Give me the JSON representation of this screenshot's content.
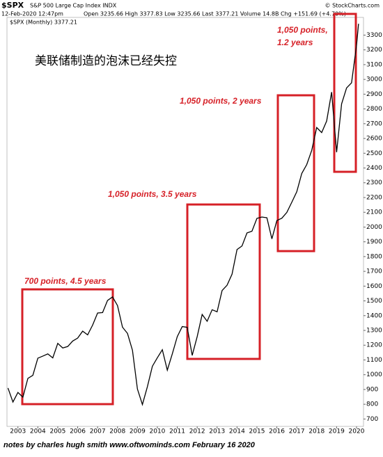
{
  "chart_data": {
    "type": "line",
    "title": "美联储制造的泡沫已经失控",
    "header": {
      "ticker": "$SPX",
      "index_name": "S&P 500 Large Cap Index INDX",
      "source": "© StockCharts.com",
      "timestamp": "12-Feb-2020 12:47pm",
      "quote": "Open 3235.66 High 3377.83 Low 3235.66 Last 3377.21 Volume 14.8B Chg +151.69 (+4.70%)"
    },
    "annotations": [
      "700 points, 4.5 years",
      "1,050 points, 3.5 years",
      "1,050 points, 2 years",
      "1,050 points,",
      "1.2 years"
    ],
    "footer": "notes by charles hugh smith  www.oftwominds.com  February 16 2020",
    "x": [
      2002.5,
      2002.75,
      2003.0,
      2003.25,
      2003.5,
      2003.75,
      2004.0,
      2004.25,
      2004.5,
      2004.75,
      2005.0,
      2005.25,
      2005.5,
      2005.75,
      2006.0,
      2006.25,
      2006.5,
      2006.75,
      2007.0,
      2007.25,
      2007.5,
      2007.75,
      2008.0,
      2008.25,
      2008.5,
      2008.75,
      2009.0,
      2009.25,
      2009.5,
      2009.75,
      2010.0,
      2010.25,
      2010.5,
      2010.75,
      2011.0,
      2011.25,
      2011.5,
      2011.75,
      2012.0,
      2012.25,
      2012.5,
      2012.75,
      2013.0,
      2013.25,
      2013.5,
      2013.75,
      2014.0,
      2014.25,
      2014.5,
      2014.75,
      2015.0,
      2015.25,
      2015.5,
      2015.75,
      2016.0,
      2016.25,
      2016.5,
      2016.75,
      2017.0,
      2017.25,
      2017.5,
      2017.75,
      2018.0,
      2018.25,
      2018.5,
      2018.75,
      2019.0,
      2019.25,
      2019.5,
      2019.75,
      2020.0,
      2020.1
    ],
    "series": [
      {
        "name": "$SPX (Monthly) 3377.21",
        "color": "#000000",
        "values": [
          910,
          815,
          880,
          848,
          975,
          996,
          1112,
          1126,
          1141,
          1114,
          1212,
          1181,
          1191,
          1228,
          1248,
          1295,
          1270,
          1336,
          1418,
          1421,
          1503,
          1527,
          1468,
          1322,
          1280,
          1166,
          903,
          798,
          919,
          1057,
          1115,
          1169,
          1031,
          1141,
          1258,
          1326,
          1321,
          1131,
          1258,
          1408,
          1362,
          1440,
          1426,
          1570,
          1606,
          1681,
          1848,
          1872,
          1960,
          1972,
          2059,
          2068,
          2063,
          1920,
          2044,
          2060,
          2099,
          2168,
          2239,
          2363,
          2423,
          2519,
          2674,
          2640,
          2718,
          2914,
          2507,
          2834,
          2942,
          2977,
          3231,
          3377
        ]
      }
    ],
    "xlim": [
      2002.45,
      2020.35
    ],
    "xticks": [
      2003,
      2004,
      2005,
      2006,
      2007,
      2008,
      2009,
      2010,
      2011,
      2012,
      2013,
      2014,
      2015,
      2016,
      2017,
      2018,
      2019,
      2020
    ],
    "ylim": [
      650,
      3420
    ],
    "yticks": [
      700,
      800,
      900,
      1000,
      1100,
      1200,
      1300,
      1400,
      1500,
      1600,
      1700,
      1800,
      1900,
      2000,
      2100,
      2200,
      2300,
      2400,
      2500,
      2600,
      2700,
      2800,
      2900,
      3000,
      3100,
      3200,
      3300
    ],
    "grid": false
  }
}
